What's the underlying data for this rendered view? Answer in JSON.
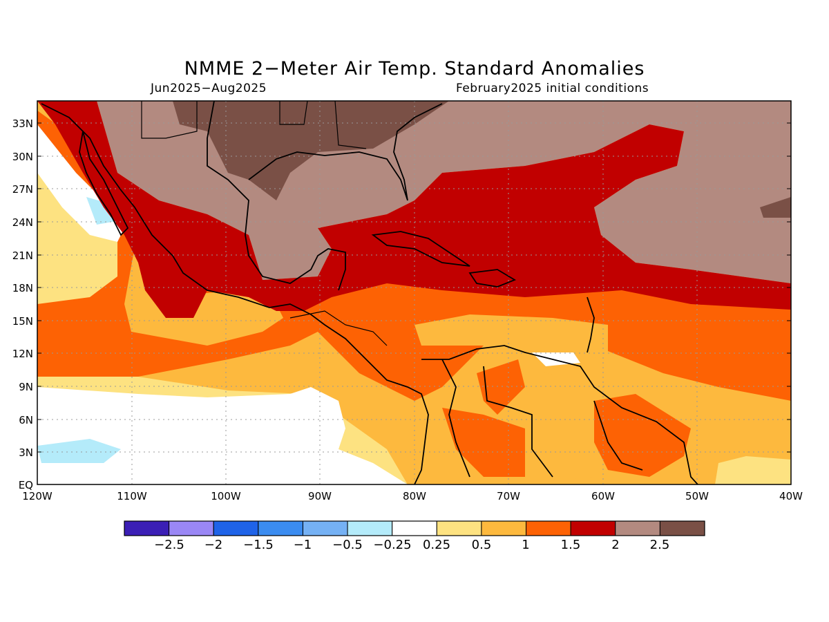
{
  "title": "NMME 2−Meter Air Temp. Standard Anomalies",
  "period": "Jun2025−Aug2025",
  "initial_conditions": "February2025 initial conditions",
  "lat_labels": [
    "33N",
    "30N",
    "27N",
    "24N",
    "21N",
    "18N",
    "15N",
    "12N",
    "9N",
    "6N",
    "3N",
    "EQ"
  ],
  "lon_labels": [
    "120W",
    "110W",
    "100W",
    "90W",
    "80W",
    "70W",
    "60W",
    "50W",
    "40W"
  ],
  "colorbar": {
    "colors": [
      "#3b1fb5",
      "#9a87f5",
      "#1f63e8",
      "#3b8cf0",
      "#75b1f4",
      "#b4ebfa",
      "#ffffff",
      "#fde281",
      "#fdb93e",
      "#fd6204",
      "#c10000",
      "#b38a80",
      "#7a5046"
    ],
    "labels": [
      "−2.5",
      "−2",
      "−1.5",
      "−1",
      "−0.5",
      "−0.25",
      "0.25",
      "0.5",
      "1",
      "1.5",
      "2",
      "2.5"
    ]
  }
}
